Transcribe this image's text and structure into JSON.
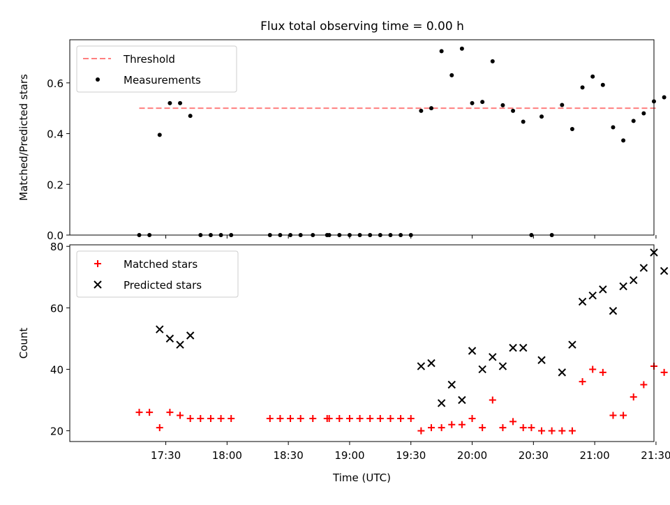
{
  "title": "Flux total observing time = 0.00 h",
  "chart_data": [
    {
      "type": "scatter",
      "ylabel": "Matched/Predicted stars",
      "ylim": [
        0,
        0.77
      ],
      "yticks": [
        "0.0",
        "0.2",
        "0.4",
        "0.6"
      ],
      "ytick_values": [
        0,
        0.2,
        0.4,
        0.6
      ],
      "xlim_minutes": [
        1003,
        1289
      ],
      "xtick_minutes": [
        1050,
        1080,
        1110,
        1140,
        1170,
        1200,
        1230,
        1260,
        1290
      ],
      "grid": false,
      "legend_position": "top-left",
      "legend": [
        "Threshold",
        "Measurements"
      ],
      "threshold": {
        "name": "Threshold",
        "value": 0.5,
        "x_range": [
          "17:17",
          "21:31"
        ],
        "color": "#ff7f7f"
      },
      "series": [
        {
          "name": "Measurements",
          "color": "#000000",
          "points": [
            [
              "17:17",
              0.0
            ],
            [
              "17:22",
              0.0
            ],
            [
              "17:27",
              0.395
            ],
            [
              "17:32",
              0.52
            ],
            [
              "17:37",
              0.52
            ],
            [
              "17:42",
              0.47
            ],
            [
              "17:47",
              0.0
            ],
            [
              "17:52",
              0.0
            ],
            [
              "17:57",
              0.0
            ],
            [
              "18:02",
              0.0
            ],
            [
              "18:21",
              0.0
            ],
            [
              "18:26",
              0.0
            ],
            [
              "18:31",
              0.0
            ],
            [
              "18:36",
              0.0
            ],
            [
              "18:42",
              0.0
            ],
            [
              "18:49",
              0.0
            ],
            [
              "18:50",
              0.0
            ],
            [
              "18:55",
              0.0
            ],
            [
              "19:00",
              0.0
            ],
            [
              "19:05",
              0.0
            ],
            [
              "19:10",
              0.0
            ],
            [
              "19:15",
              0.0
            ],
            [
              "19:20",
              0.0
            ],
            [
              "19:25",
              0.0
            ],
            [
              "19:30",
              0.0
            ],
            [
              "19:35",
              0.49
            ],
            [
              "19:40",
              0.5
            ],
            [
              "19:45",
              0.725
            ],
            [
              "19:50",
              0.63
            ],
            [
              "19:55",
              0.735
            ],
            [
              "20:00",
              0.52
            ],
            [
              "20:05",
              0.525
            ],
            [
              "20:10",
              0.685
            ],
            [
              "20:15",
              0.512
            ],
            [
              "20:20",
              0.49
            ],
            [
              "20:25",
              0.447
            ],
            [
              "20:29",
              0.0
            ],
            [
              "20:34",
              0.467
            ],
            [
              "20:39",
              0.0
            ],
            [
              "20:44",
              0.513
            ],
            [
              "20:49",
              0.418
            ],
            [
              "20:54",
              0.582
            ],
            [
              "20:59",
              0.625
            ],
            [
              "21:04",
              0.592
            ],
            [
              "21:09",
              0.425
            ],
            [
              "21:14",
              0.373
            ],
            [
              "21:19",
              0.45
            ],
            [
              "21:24",
              0.48
            ],
            [
              "21:29",
              0.527
            ],
            [
              "21:34",
              0.543
            ]
          ]
        }
      ]
    },
    {
      "type": "scatter",
      "xlabel": "Time (UTC)",
      "ylabel": "Count",
      "ylim": [
        16.5,
        80.5
      ],
      "yticks": [
        "20",
        "40",
        "60",
        "80"
      ],
      "ytick_values": [
        20,
        40,
        60,
        80
      ],
      "xlim_minutes": [
        1003,
        1289
      ],
      "xticks": [
        "17:30",
        "18:00",
        "18:30",
        "19:00",
        "19:30",
        "20:00",
        "20:30",
        "21:00",
        "21:30"
      ],
      "xtick_minutes": [
        1050,
        1080,
        1110,
        1140,
        1170,
        1200,
        1230,
        1260,
        1290
      ],
      "grid": false,
      "legend_position": "top-left",
      "legend": [
        "Matched stars",
        "Predicted stars"
      ],
      "series": [
        {
          "name": "Matched stars",
          "marker": "plus",
          "color": "#ff0000",
          "points": [
            [
              "17:17",
              26
            ],
            [
              "17:22",
              26
            ],
            [
              "17:27",
              21
            ],
            [
              "17:32",
              26
            ],
            [
              "17:37",
              25
            ],
            [
              "17:42",
              24
            ],
            [
              "17:47",
              24
            ],
            [
              "17:52",
              24
            ],
            [
              "17:57",
              24
            ],
            [
              "18:02",
              24
            ],
            [
              "18:21",
              24
            ],
            [
              "18:26",
              24
            ],
            [
              "18:31",
              24
            ],
            [
              "18:36",
              24
            ],
            [
              "18:42",
              24
            ],
            [
              "18:49",
              24
            ],
            [
              "18:50",
              24
            ],
            [
              "18:55",
              24
            ],
            [
              "19:00",
              24
            ],
            [
              "19:05",
              24
            ],
            [
              "19:10",
              24
            ],
            [
              "19:15",
              24
            ],
            [
              "19:20",
              24
            ],
            [
              "19:25",
              24
            ],
            [
              "19:30",
              24
            ],
            [
              "19:35",
              20
            ],
            [
              "19:40",
              21
            ],
            [
              "19:45",
              21
            ],
            [
              "19:50",
              22
            ],
            [
              "19:55",
              22
            ],
            [
              "20:00",
              24
            ],
            [
              "20:05",
              21
            ],
            [
              "20:10",
              30
            ],
            [
              "20:15",
              21
            ],
            [
              "20:20",
              23
            ],
            [
              "20:25",
              21
            ],
            [
              "20:29",
              21
            ],
            [
              "20:34",
              20
            ],
            [
              "20:39",
              20
            ],
            [
              "20:44",
              20
            ],
            [
              "20:49",
              20
            ],
            [
              "20:54",
              36
            ],
            [
              "20:59",
              40
            ],
            [
              "21:04",
              39
            ],
            [
              "21:09",
              25
            ],
            [
              "21:14",
              25
            ],
            [
              "21:19",
              31
            ],
            [
              "21:24",
              35
            ],
            [
              "21:29",
              41
            ],
            [
              "21:34",
              39
            ]
          ]
        },
        {
          "name": "Predicted stars",
          "marker": "x",
          "color": "#000000",
          "points": [
            [
              "17:27",
              53
            ],
            [
              "17:32",
              50
            ],
            [
              "17:37",
              48
            ],
            [
              "17:42",
              51
            ],
            [
              "19:35",
              41
            ],
            [
              "19:40",
              42
            ],
            [
              "19:45",
              29
            ],
            [
              "19:50",
              35
            ],
            [
              "19:55",
              30
            ],
            [
              "20:00",
              46
            ],
            [
              "20:05",
              40
            ],
            [
              "20:10",
              44
            ],
            [
              "20:15",
              41
            ],
            [
              "20:20",
              47
            ],
            [
              "20:25",
              47
            ],
            [
              "20:34",
              43
            ],
            [
              "20:44",
              39
            ],
            [
              "20:49",
              48
            ],
            [
              "20:54",
              62
            ],
            [
              "20:59",
              64
            ],
            [
              "21:04",
              66
            ],
            [
              "21:09",
              59
            ],
            [
              "21:14",
              67
            ],
            [
              "21:19",
              69
            ],
            [
              "21:24",
              73
            ],
            [
              "21:29",
              78
            ],
            [
              "21:34",
              72
            ]
          ]
        }
      ]
    }
  ]
}
